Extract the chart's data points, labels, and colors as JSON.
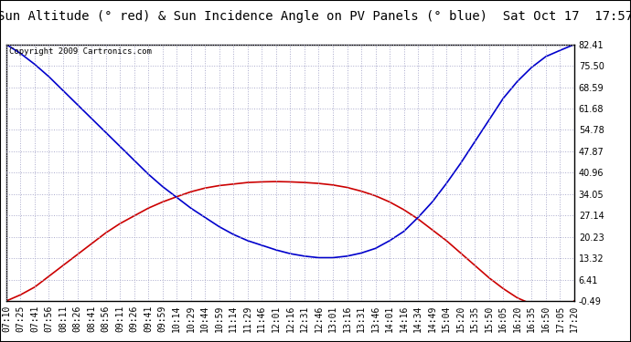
{
  "title": "Sun Altitude (° red) & Sun Incidence Angle on PV Panels (° blue)  Sat Oct 17  17:57",
  "copyright": "Copyright 2009 Cartronics.com",
  "ylim": [
    -0.49,
    82.41
  ],
  "yticks": [
    -0.49,
    6.41,
    13.32,
    20.23,
    27.14,
    34.05,
    40.96,
    47.87,
    54.78,
    61.68,
    68.59,
    75.5,
    82.41
  ],
  "time_labels": [
    "07:10",
    "07:25",
    "07:41",
    "07:56",
    "08:11",
    "08:26",
    "08:41",
    "08:56",
    "09:11",
    "09:26",
    "09:41",
    "09:59",
    "10:14",
    "10:29",
    "10:44",
    "10:59",
    "11:14",
    "11:29",
    "11:46",
    "12:01",
    "12:16",
    "12:31",
    "12:46",
    "13:01",
    "13:16",
    "13:31",
    "13:46",
    "14:01",
    "14:16",
    "14:34",
    "14:49",
    "15:04",
    "15:20",
    "15:35",
    "15:50",
    "16:05",
    "16:20",
    "16:35",
    "16:50",
    "17:05",
    "17:20"
  ],
  "red_data": [
    -0.49,
    1.5,
    4.0,
    7.5,
    11.0,
    14.5,
    18.0,
    21.5,
    24.5,
    27.0,
    29.5,
    31.5,
    33.2,
    34.8,
    36.0,
    36.8,
    37.3,
    37.8,
    38.0,
    38.1,
    38.0,
    37.8,
    37.5,
    37.0,
    36.2,
    35.0,
    33.5,
    31.5,
    29.0,
    26.0,
    22.5,
    19.0,
    15.0,
    11.0,
    7.0,
    3.5,
    0.5,
    -1.5,
    -3.5,
    -4.5,
    -0.49
  ],
  "blue_data": [
    82.41,
    79.5,
    76.0,
    72.0,
    67.5,
    63.0,
    58.5,
    54.0,
    49.5,
    45.0,
    40.5,
    36.5,
    33.0,
    29.5,
    26.5,
    23.5,
    21.0,
    19.0,
    17.5,
    16.0,
    14.8,
    14.0,
    13.5,
    13.5,
    14.0,
    15.0,
    16.5,
    19.0,
    22.0,
    26.5,
    31.5,
    37.5,
    44.0,
    51.0,
    58.0,
    65.0,
    70.5,
    75.0,
    78.5,
    80.5,
    82.41
  ],
  "red_color": "#cc0000",
  "blue_color": "#0000cc",
  "bg_color": "#ffffff",
  "grid_color": "#aaaacc",
  "title_fontsize": 10,
  "copyright_fontsize": 6.5,
  "tick_fontsize": 7
}
